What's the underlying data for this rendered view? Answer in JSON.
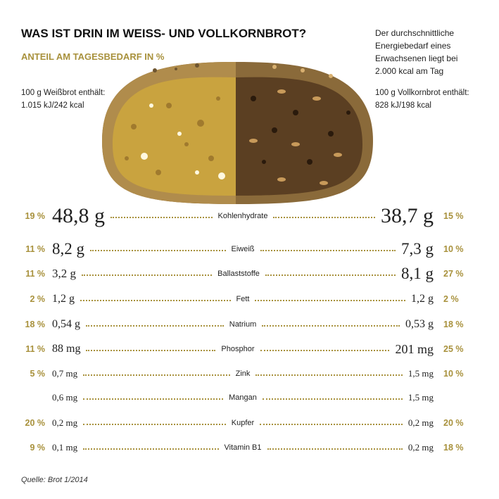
{
  "header": {
    "title": "WAS IST DRIN IM WEISS- UND VOLLKORNBROT?",
    "subtitle": "ANTEIL AM TAGESBEDARF IN %",
    "note": [
      "Der durchschnittliche",
      "Energiebedarf eines",
      "Erwachsenen liegt bei",
      "2.000 kcal am Tag"
    ]
  },
  "white_bread": [
    "100 g Weißbrot enthält:",
    "1.015 kJ/242 kcal"
  ],
  "whole_bread": [
    "100 g Vollkornbrot enthält:",
    "828 kJ/198 kcal"
  ],
  "rows": [
    {
      "left_pct": "19 %",
      "left_value": "48,8 g",
      "nutrient": "Kohlenhydrate",
      "right_value": "38,7 g",
      "right_pct": "15 %"
    },
    {
      "left_pct": "11 %",
      "left_value": "8,2 g",
      "nutrient": "Eiweiß",
      "right_value": "7,3 g",
      "right_pct": "10 %"
    },
    {
      "left_pct": "11 %",
      "left_value": "3,2 g",
      "nutrient": "Ballaststoffe",
      "right_value": "8,1 g",
      "right_pct": "27 %"
    },
    {
      "left_pct": "2 %",
      "left_value": "1,2 g",
      "nutrient": "Fett",
      "right_value": "1,2 g",
      "right_pct": "2 %"
    },
    {
      "left_pct": "18 %",
      "left_value": "0,54 g",
      "nutrient": "Natrium",
      "right_value": "0,53 g",
      "right_pct": "18 %"
    },
    {
      "left_pct": "11 %",
      "left_value": "88 mg",
      "nutrient": "Phosphor",
      "right_value": "201 mg",
      "right_pct": "25 %"
    },
    {
      "left_pct": "5 %",
      "left_value": "0,7 mg",
      "nutrient": "Zink",
      "right_value": "1,5 mg",
      "right_pct": "10 %"
    },
    {
      "left_value": "0,6 mg",
      "nutrient": "Mangan",
      "right_value": "1,5 mg"
    },
    {
      "left_pct": "20 %",
      "left_value": "0,2 mg",
      "nutrient": "Kupfer",
      "right_value": "0,2 mg",
      "right_pct": "20 %"
    },
    {
      "left_pct": "9 %",
      "left_value": "0,1 mg",
      "nutrient": "Vitamin B1",
      "right_value": "0,2 mg",
      "right_pct": "18 %"
    }
  ],
  "source": "Quelle: Brot 1/2014"
}
